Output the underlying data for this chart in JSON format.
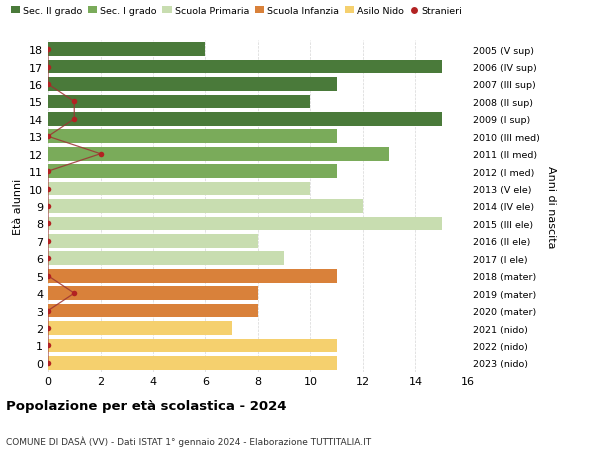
{
  "ages": [
    18,
    17,
    16,
    15,
    14,
    13,
    12,
    11,
    10,
    9,
    8,
    7,
    6,
    5,
    4,
    3,
    2,
    1,
    0
  ],
  "values": [
    6,
    15,
    11,
    10,
    15,
    11,
    13,
    11,
    10,
    12,
    15,
    8,
    9,
    11,
    8,
    8,
    7,
    11,
    11
  ],
  "right_labels": [
    "2005 (V sup)",
    "2006 (IV sup)",
    "2007 (III sup)",
    "2008 (II sup)",
    "2009 (I sup)",
    "2010 (III med)",
    "2011 (II med)",
    "2012 (I med)",
    "2013 (V ele)",
    "2014 (IV ele)",
    "2015 (III ele)",
    "2016 (II ele)",
    "2017 (I ele)",
    "2018 (mater)",
    "2019 (mater)",
    "2020 (mater)",
    "2021 (nido)",
    "2022 (nido)",
    "2023 (nido)"
  ],
  "colors": [
    "#4a7a3a",
    "#4a7a3a",
    "#4a7a3a",
    "#4a7a3a",
    "#4a7a3a",
    "#7aab5a",
    "#7aab5a",
    "#7aab5a",
    "#c8ddb0",
    "#c8ddb0",
    "#c8ddb0",
    "#c8ddb0",
    "#c8ddb0",
    "#d9813a",
    "#d9813a",
    "#d9813a",
    "#f5d06e",
    "#f5d06e",
    "#f5d06e"
  ],
  "stranieri_ages": [
    18,
    17,
    16,
    15,
    14,
    13,
    12,
    11,
    10,
    9,
    8,
    7,
    6,
    5,
    4,
    3,
    2,
    1,
    0
  ],
  "stranieri_values": [
    0,
    0,
    0,
    1,
    1,
    0,
    2,
    0,
    0,
    0,
    0,
    0,
    0,
    0,
    1,
    0,
    0,
    0,
    0
  ],
  "legend_labels": [
    "Sec. II grado",
    "Sec. I grado",
    "Scuola Primaria",
    "Scuola Infanzia",
    "Asilo Nido",
    "Stranieri"
  ],
  "legend_colors": [
    "#4a7a3a",
    "#7aab5a",
    "#c8ddb0",
    "#d9813a",
    "#f5d06e",
    "#b22222"
  ],
  "title": "Popolazione per età scolastica - 2024",
  "subtitle": "COMUNE DI DASÀ (VV) - Dati ISTAT 1° gennaio 2024 - Elaborazione TUTTITALIA.IT",
  "ylabel": "Età alunni",
  "right_ylabel": "Anni di nascita",
  "xlim": [
    0,
    16
  ],
  "xticks": [
    0,
    2,
    4,
    6,
    8,
    10,
    12,
    14,
    16
  ],
  "background_color": "#ffffff",
  "grid_color": "#cccccc"
}
